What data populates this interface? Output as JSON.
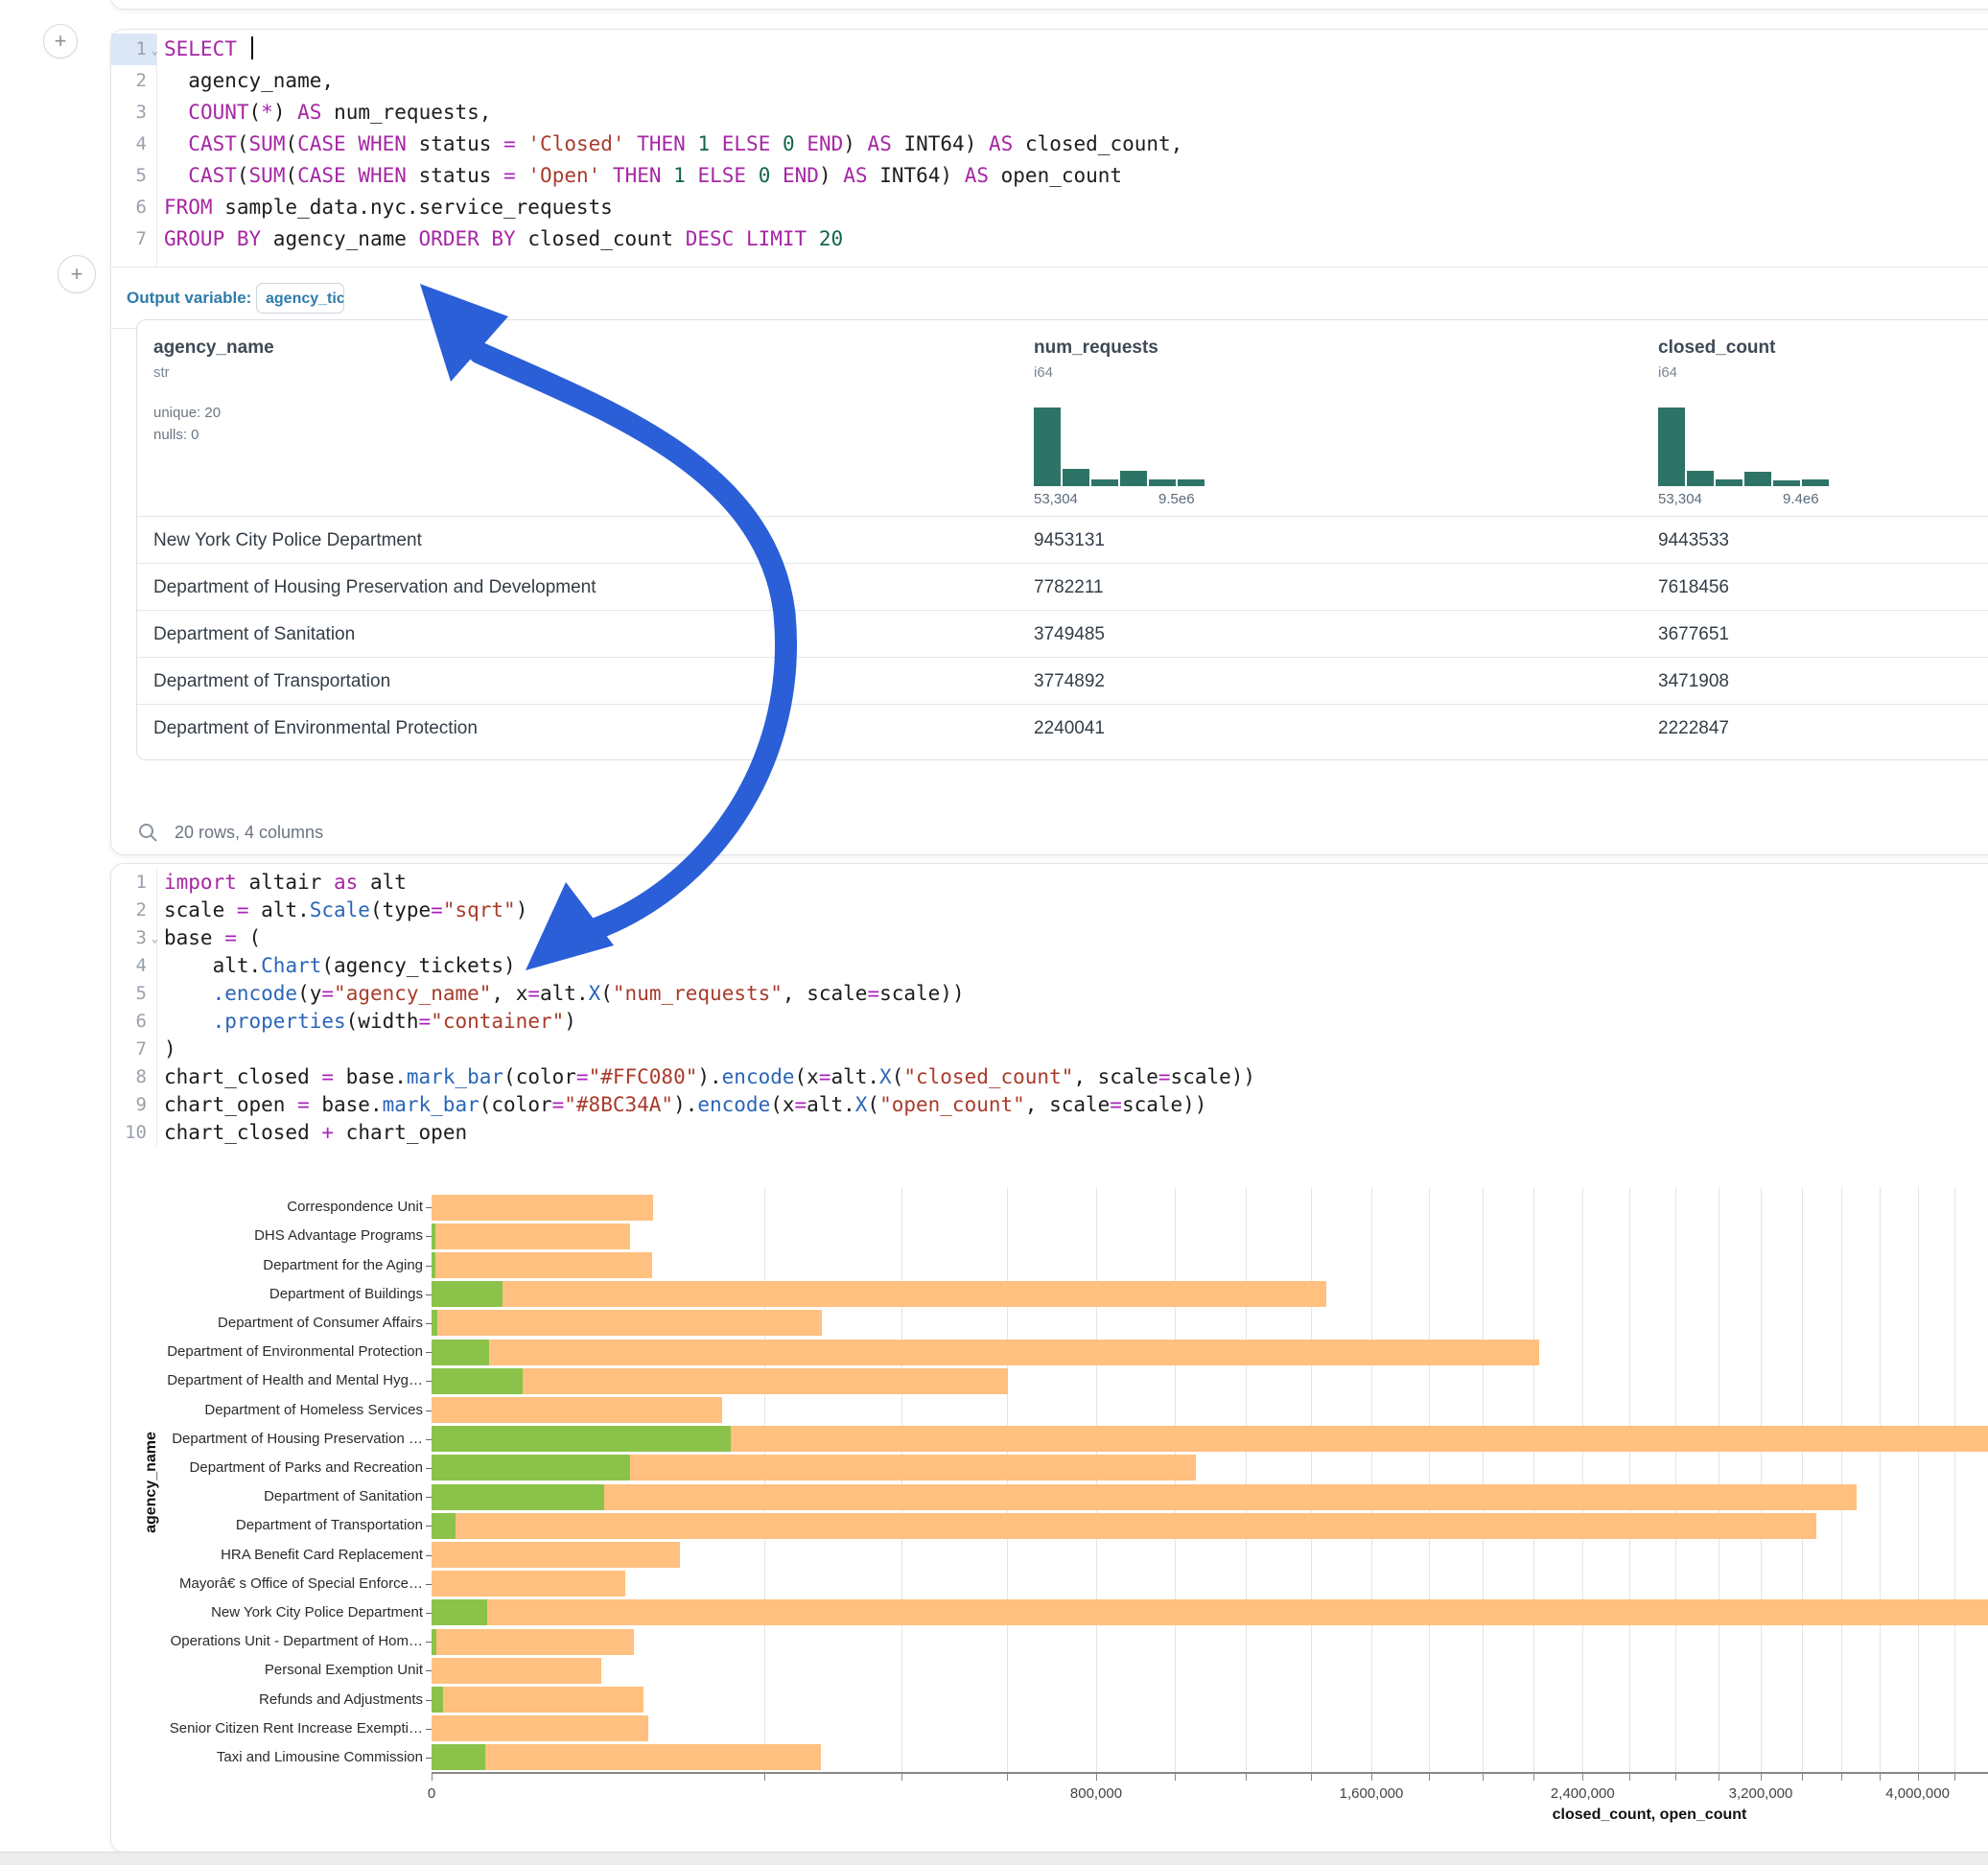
{
  "toolbar": {
    "add_cell_label": "+"
  },
  "sql_cell": {
    "language": "sql",
    "output_variable_label": "Output variable:",
    "output_variable_value": "agency_tickets",
    "lines": [
      {
        "n": "1",
        "fold": true,
        "active": true,
        "cursor": true,
        "t": [
          [
            "k",
            "SELECT"
          ],
          [
            "p",
            " "
          ]
        ]
      },
      {
        "n": "2",
        "t": [
          [
            "p",
            "  agency_name,"
          ]
        ]
      },
      {
        "n": "3",
        "t": [
          [
            "p",
            "  "
          ],
          [
            "k",
            "COUNT"
          ],
          [
            "p",
            "("
          ],
          [
            "o",
            "*"
          ],
          [
            "p",
            ") "
          ],
          [
            "k",
            "AS"
          ],
          [
            "p",
            " num_requests,"
          ]
        ]
      },
      {
        "n": "4",
        "t": [
          [
            "p",
            "  "
          ],
          [
            "k",
            "CAST"
          ],
          [
            "p",
            "("
          ],
          [
            "k",
            "SUM"
          ],
          [
            "p",
            "("
          ],
          [
            "k",
            "CASE"
          ],
          [
            "p",
            " "
          ],
          [
            "k",
            "WHEN"
          ],
          [
            "p",
            " status "
          ],
          [
            "o",
            "="
          ],
          [
            "p",
            " "
          ],
          [
            "s",
            "'Closed'"
          ],
          [
            "p",
            " "
          ],
          [
            "k",
            "THEN"
          ],
          [
            "p",
            " "
          ],
          [
            "n",
            "1"
          ],
          [
            "p",
            " "
          ],
          [
            "k",
            "ELSE"
          ],
          [
            "p",
            " "
          ],
          [
            "n",
            "0"
          ],
          [
            "p",
            " "
          ],
          [
            "k",
            "END"
          ],
          [
            "p",
            ") "
          ],
          [
            "k",
            "AS"
          ],
          [
            "p",
            " INT64) "
          ],
          [
            "k",
            "AS"
          ],
          [
            "p",
            " closed_count,"
          ]
        ]
      },
      {
        "n": "5",
        "t": [
          [
            "p",
            "  "
          ],
          [
            "k",
            "CAST"
          ],
          [
            "p",
            "("
          ],
          [
            "k",
            "SUM"
          ],
          [
            "p",
            "("
          ],
          [
            "k",
            "CASE"
          ],
          [
            "p",
            " "
          ],
          [
            "k",
            "WHEN"
          ],
          [
            "p",
            " status "
          ],
          [
            "o",
            "="
          ],
          [
            "p",
            " "
          ],
          [
            "s",
            "'Open'"
          ],
          [
            "p",
            " "
          ],
          [
            "k",
            "THEN"
          ],
          [
            "p",
            " "
          ],
          [
            "n",
            "1"
          ],
          [
            "p",
            " "
          ],
          [
            "k",
            "ELSE"
          ],
          [
            "p",
            " "
          ],
          [
            "n",
            "0"
          ],
          [
            "p",
            " "
          ],
          [
            "k",
            "END"
          ],
          [
            "p",
            ") "
          ],
          [
            "k",
            "AS"
          ],
          [
            "p",
            " INT64) "
          ],
          [
            "k",
            "AS"
          ],
          [
            "p",
            " open_count"
          ]
        ]
      },
      {
        "n": "6",
        "t": [
          [
            "k",
            "FROM"
          ],
          [
            "p",
            " sample_data.nyc.service_requests"
          ]
        ]
      },
      {
        "n": "7",
        "t": [
          [
            "k",
            "GROUP BY"
          ],
          [
            "p",
            " agency_name "
          ],
          [
            "k",
            "ORDER BY"
          ],
          [
            "p",
            " closed_count "
          ],
          [
            "k",
            "DESC"
          ],
          [
            "p",
            " "
          ],
          [
            "k",
            "LIMIT"
          ],
          [
            "p",
            " "
          ],
          [
            "n",
            "20"
          ]
        ]
      }
    ]
  },
  "table": {
    "columns": [
      {
        "name": "agency_name",
        "type": "str",
        "stats": [
          "unique: 20",
          "nulls: 0"
        ]
      },
      {
        "name": "num_requests",
        "type": "i64",
        "histogram": {
          "bars": [
            1,
            0.22,
            0.09,
            0.19,
            0.08,
            0.09
          ],
          "min_label": "53,304",
          "max_label": "9.5e6"
        }
      },
      {
        "name": "closed_count",
        "type": "i64",
        "histogram": {
          "bars": [
            1,
            0.2,
            0.09,
            0.18,
            0.07,
            0.08
          ],
          "min_label": "53,304",
          "max_label": "9.4e6"
        }
      }
    ],
    "rows": [
      [
        "New York City Police Department",
        "9453131",
        "9443533"
      ],
      [
        "Department of Housing Preservation and Development",
        "7782211",
        "7618456"
      ],
      [
        "Department of Sanitation",
        "3749485",
        "3677651"
      ],
      [
        "Department of Transportation",
        "3774892",
        "3471908"
      ],
      [
        "Department of Environmental Protection",
        "2240041",
        "2222847"
      ]
    ],
    "footer": "20 rows, 4 columns"
  },
  "python_cell": {
    "language": "python",
    "lines": [
      {
        "n": "1",
        "t": [
          [
            "k",
            "import"
          ],
          [
            "p",
            " altair "
          ],
          [
            "k",
            "as"
          ],
          [
            "p",
            " alt"
          ]
        ]
      },
      {
        "n": "2",
        "t": [
          [
            "p",
            "scale "
          ],
          [
            "o",
            "="
          ],
          [
            "p",
            " alt."
          ],
          [
            "f",
            "Scale"
          ],
          [
            "p",
            "(type"
          ],
          [
            "o",
            "="
          ],
          [
            "s",
            "\"sqrt\""
          ],
          [
            "p",
            ")"
          ]
        ]
      },
      {
        "n": "3",
        "fold": true,
        "t": [
          [
            "p",
            "base "
          ],
          [
            "o",
            "="
          ],
          [
            "p",
            " ("
          ]
        ]
      },
      {
        "n": "4",
        "t": [
          [
            "p",
            "    alt."
          ],
          [
            "f",
            "Chart"
          ],
          [
            "p",
            "(agency_tickets)"
          ]
        ]
      },
      {
        "n": "5",
        "t": [
          [
            "p",
            "    "
          ],
          [
            "f",
            ".encode"
          ],
          [
            "p",
            "(y"
          ],
          [
            "o",
            "="
          ],
          [
            "s",
            "\"agency_name\""
          ],
          [
            "p",
            ", x"
          ],
          [
            "o",
            "="
          ],
          [
            "p",
            "alt."
          ],
          [
            "f",
            "X"
          ],
          [
            "p",
            "("
          ],
          [
            "s",
            "\"num_requests\""
          ],
          [
            "p",
            ", scale"
          ],
          [
            "o",
            "="
          ],
          [
            "p",
            "scale))"
          ]
        ]
      },
      {
        "n": "6",
        "t": [
          [
            "p",
            "    "
          ],
          [
            "f",
            ".properties"
          ],
          [
            "p",
            "(width"
          ],
          [
            "o",
            "="
          ],
          [
            "s",
            "\"container\""
          ],
          [
            "p",
            ")"
          ]
        ]
      },
      {
        "n": "7",
        "t": [
          [
            "p",
            ")"
          ]
        ]
      },
      {
        "n": "8",
        "t": [
          [
            "p",
            "chart_closed "
          ],
          [
            "o",
            "="
          ],
          [
            "p",
            " base."
          ],
          [
            "f",
            "mark_bar"
          ],
          [
            "p",
            "(color"
          ],
          [
            "o",
            "="
          ],
          [
            "s",
            "\"#FFC080\""
          ],
          [
            "p",
            ")."
          ],
          [
            "f",
            "encode"
          ],
          [
            "p",
            "(x"
          ],
          [
            "o",
            "="
          ],
          [
            "p",
            "alt."
          ],
          [
            "f",
            "X"
          ],
          [
            "p",
            "("
          ],
          [
            "s",
            "\"closed_count\""
          ],
          [
            "p",
            ", scale"
          ],
          [
            "o",
            "="
          ],
          [
            "p",
            "scale))"
          ]
        ]
      },
      {
        "n": "9",
        "t": [
          [
            "p",
            "chart_open "
          ],
          [
            "o",
            "="
          ],
          [
            "p",
            " base."
          ],
          [
            "f",
            "mark_bar"
          ],
          [
            "p",
            "(color"
          ],
          [
            "o",
            "="
          ],
          [
            "s",
            "\"#8BC34A\""
          ],
          [
            "p",
            ")."
          ],
          [
            "f",
            "encode"
          ],
          [
            "p",
            "(x"
          ],
          [
            "o",
            "="
          ],
          [
            "p",
            "alt."
          ],
          [
            "f",
            "X"
          ],
          [
            "p",
            "("
          ],
          [
            "s",
            "\"open_count\""
          ],
          [
            "p",
            ", scale"
          ],
          [
            "o",
            "="
          ],
          [
            "p",
            "scale))"
          ]
        ]
      },
      {
        "n": "10",
        "t": [
          [
            "p",
            "chart_closed "
          ],
          [
            "o",
            "+"
          ],
          [
            "p",
            " chart_open"
          ]
        ]
      }
    ]
  },
  "chart_data": {
    "type": "bar",
    "orientation": "horizontal",
    "title": "",
    "xlabel": "closed_count, open_count",
    "ylabel": "agency_name",
    "x_scale": "sqrt",
    "grid": true,
    "x_tick_values": [
      0,
      800000,
      1600000,
      2400000,
      3200000,
      4000000
    ],
    "x_tick_labels": [
      "0",
      "800,000",
      "1,600,000",
      "2,400,000",
      "3,200,000",
      "4,000,000"
    ],
    "x_minor_step": 200000,
    "x_max_visible": 4400000,
    "categories": [
      "Correspondence Unit",
      "DHS Advantage Programs",
      "Department for the Aging",
      "Department of Buildings",
      "Department of Consumer Affairs",
      "Department of Environmental Protection",
      "Department of Health and Mental Hyg…",
      "Department of Homeless Services",
      "Department of Housing Preservation …",
      "Department of Parks and Recreation",
      "Department of Sanitation",
      "Department of Transportation",
      "HRA Benefit Card Replacement",
      "Mayorâ€ s Office of Special Enforce…",
      "New York City Police Department",
      "Operations Unit - Department of Hom…",
      "Personal Exemption Unit",
      "Refunds and Adjustments",
      "Senior Citizen Rent Increase Exempti…",
      "Taxi and Limousine Commission"
    ],
    "series": [
      {
        "name": "closed_count",
        "color": "#FFC080",
        "values": [
          89000,
          71000,
          88000,
          1450000,
          276000,
          2222847,
          601000,
          153000,
          7618456,
          1058000,
          3677651,
          3471908,
          112000,
          68000,
          9443533,
          74000,
          52000,
          81000,
          85000,
          275000
        ]
      },
      {
        "name": "open_count",
        "color": "#8BC34A",
        "values": [
          0,
          20,
          30,
          9000,
          60,
          6000,
          15000,
          0,
          162000,
          71000,
          54000,
          1000,
          0,
          0,
          5600,
          40,
          0,
          250,
          0,
          5200
        ]
      }
    ]
  },
  "annotation": {
    "arrow_color": "#2b5fd8"
  },
  "icons": {
    "search": "magnifier",
    "fold": "⌄",
    "plus": "+"
  }
}
